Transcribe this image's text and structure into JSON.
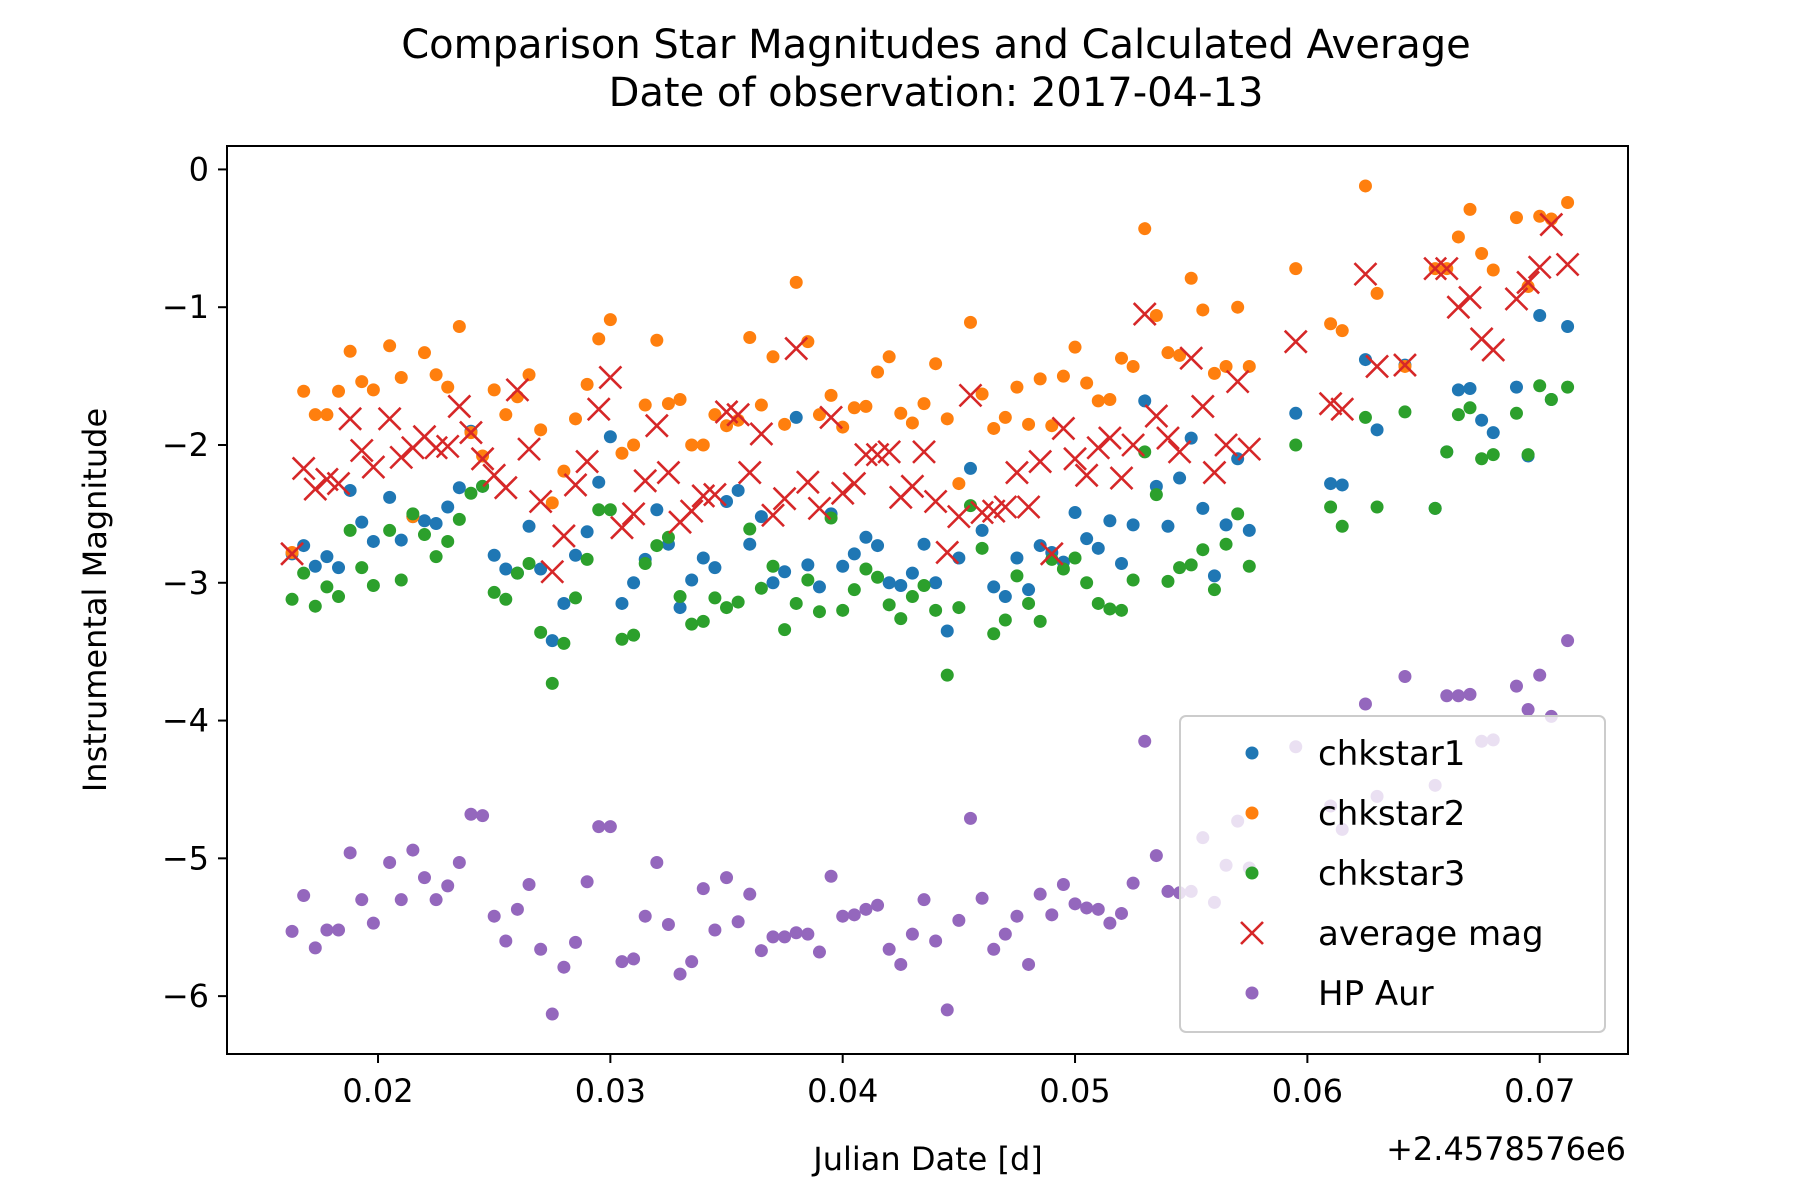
{
  "chart_data": {
    "type": "scatter",
    "title": "Comparison Star Magnitudes and Calculated Average",
    "subtitle": "Date of observation: 2017-04-13",
    "xlabel": "Julian Date [d]",
    "ylabel": "Instrumental Magnitude",
    "x_offset_label": "+2.4578576e6",
    "xlim": [
      0.0135,
      0.0738
    ],
    "ylim": [
      -6.42,
      0.17
    ],
    "x_ticks": [
      0.02,
      0.03,
      0.04,
      0.05,
      0.06,
      0.07
    ],
    "x_tick_labels": [
      "0.02",
      "0.03",
      "0.04",
      "0.05",
      "0.06",
      "0.07"
    ],
    "y_ticks": [
      0,
      -1,
      -2,
      -3,
      -4,
      -5,
      -6
    ],
    "y_tick_labels": [
      "0",
      "−1",
      "−2",
      "−3",
      "−4",
      "−5",
      "−6"
    ],
    "grid": false,
    "legend_position": "bottom-right",
    "x": [
      0.0163,
      0.0168,
      0.0173,
      0.0178,
      0.0183,
      0.0188,
      0.0193,
      0.0198,
      0.0205,
      0.021,
      0.0215,
      0.022,
      0.0225,
      0.023,
      0.0235,
      0.024,
      0.0245,
      0.025,
      0.0255,
      0.026,
      0.0265,
      0.027,
      0.0275,
      0.028,
      0.0285,
      0.029,
      0.0295,
      0.03,
      0.0305,
      0.031,
      0.0315,
      0.032,
      0.0325,
      0.033,
      0.0335,
      0.034,
      0.0345,
      0.035,
      0.0355,
      0.036,
      0.0365,
      0.037,
      0.0375,
      0.038,
      0.0385,
      0.039,
      0.0395,
      0.04,
      0.0405,
      0.041,
      0.0415,
      0.042,
      0.0425,
      0.043,
      0.0435,
      0.044,
      0.0445,
      0.045,
      0.0455,
      0.046,
      0.0465,
      0.047,
      0.0475,
      0.048,
      0.0485,
      0.049,
      0.0495,
      0.05,
      0.0505,
      0.051,
      0.0515,
      0.052,
      0.0525,
      0.053,
      0.0535,
      0.054,
      0.0545,
      0.055,
      0.0555,
      0.056,
      0.0565,
      0.057,
      0.0575,
      0.0595,
      0.061,
      0.0615,
      0.0625,
      0.063,
      0.0642,
      0.0655,
      0.066,
      0.0665,
      0.067,
      0.0675,
      0.068,
      0.069,
      0.0695,
      0.07,
      0.0705,
      0.0712
    ],
    "series": [
      {
        "name": "chkstar1",
        "color": "#1f77b4",
        "marker": "dot",
        "values": [
          -2.79,
          -2.73,
          -2.88,
          -2.81,
          -2.89,
          -2.33,
          -2.56,
          -2.7,
          -2.38,
          -2.69,
          -2.52,
          -2.55,
          -2.57,
          -2.45,
          -2.31,
          -1.9,
          -2.3,
          -2.8,
          -2.9,
          -2.93,
          -2.59,
          -2.9,
          -3.42,
          -3.15,
          -2.8,
          -2.63,
          -2.27,
          -1.94,
          -3.15,
          -3.0,
          -2.83,
          -2.47,
          -2.72,
          -3.18,
          -2.98,
          -2.82,
          -2.89,
          -2.41,
          -2.33,
          -2.72,
          -2.52,
          -3.0,
          -2.92,
          -1.8,
          -2.87,
          -3.03,
          -2.5,
          -2.88,
          -2.79,
          -2.67,
          -2.73,
          -3.0,
          -3.02,
          -2.93,
          -2.72,
          -3.0,
          -3.35,
          -2.82,
          -2.17,
          -2.62,
          -3.03,
          -3.1,
          -2.82,
          -3.05,
          -2.73,
          -2.78,
          -2.85,
          -2.49,
          -2.68,
          -2.75,
          -2.55,
          -2.86,
          -2.58,
          -1.68,
          -2.3,
          -2.59,
          -2.24,
          -1.95,
          -2.46,
          -2.95,
          -2.58,
          -2.1,
          -2.62,
          -1.77,
          -2.28,
          -2.29,
          -1.38,
          -1.89,
          -1.42,
          -2.46,
          -2.05,
          -1.6,
          -1.59,
          -1.82,
          -1.91,
          -1.58,
          -2.08,
          -1.06,
          -1.67,
          -1.14
        ]
      },
      {
        "name": "chkstar2",
        "color": "#ff7f0e",
        "marker": "dot",
        "values": [
          -2.78,
          -1.61,
          -1.78,
          -1.78,
          -1.61,
          -1.32,
          -1.54,
          -1.6,
          -1.28,
          -1.51,
          -2.52,
          -1.33,
          -1.49,
          -1.58,
          -1.14,
          -1.91,
          -2.08,
          -1.6,
          -1.78,
          -1.65,
          -1.49,
          -1.89,
          -2.42,
          -2.19,
          -1.81,
          -1.56,
          -1.23,
          -1.09,
          -2.06,
          -2.0,
          -1.71,
          -1.24,
          -1.7,
          -1.67,
          -2.0,
          -2.0,
          -1.78,
          -1.86,
          -1.82,
          -1.22,
          -1.71,
          -1.36,
          -1.85,
          -0.82,
          -1.25,
          -1.78,
          -1.64,
          -1.87,
          -1.73,
          -1.72,
          -1.47,
          -1.36,
          -1.77,
          -1.84,
          -1.7,
          -1.41,
          -1.81,
          -2.28,
          -1.11,
          -1.63,
          -1.88,
          -1.8,
          -1.58,
          -1.85,
          -1.52,
          -1.86,
          -1.5,
          -1.29,
          -1.55,
          -1.68,
          -1.67,
          -1.37,
          -1.43,
          -0.43,
          -1.06,
          -1.33,
          -1.35,
          -0.79,
          -1.02,
          -1.48,
          -1.43,
          -1.0,
          -1.43,
          -0.72,
          -1.12,
          -1.17,
          -0.12,
          -0.9,
          -1.43,
          -0.72,
          -0.72,
          -0.49,
          -0.29,
          -0.61,
          -0.73,
          -0.35,
          -0.85,
          -0.34,
          -0.36,
          -0.24
        ]
      },
      {
        "name": "chkstar3",
        "color": "#2ca02c",
        "marker": "dot",
        "values": [
          -3.12,
          -2.93,
          -3.17,
          -3.03,
          -3.1,
          -2.62,
          -2.89,
          -3.02,
          -2.62,
          -2.98,
          -2.5,
          -2.65,
          -2.81,
          -2.7,
          -2.54,
          -2.35,
          -2.3,
          -3.07,
          -3.12,
          -2.93,
          -2.86,
          -3.36,
          -3.73,
          -3.44,
          -3.11,
          -2.83,
          -2.47,
          -2.47,
          -3.41,
          -3.38,
          -2.86,
          -2.73,
          -2.67,
          -3.1,
          -3.3,
          -3.28,
          -3.11,
          -3.18,
          -3.14,
          -2.61,
          -3.04,
          -2.88,
          -3.34,
          -3.15,
          -2.98,
          -3.21,
          -2.53,
          -3.2,
          -3.05,
          -2.9,
          -2.96,
          -3.16,
          -3.26,
          -3.1,
          -3.02,
          -3.2,
          -3.67,
          -3.18,
          -2.44,
          -2.75,
          -3.37,
          -3.27,
          -2.95,
          -3.15,
          -3.28,
          -2.83,
          -2.9,
          -2.82,
          -3.0,
          -3.15,
          -3.19,
          -3.2,
          -2.98,
          -2.05,
          -2.36,
          -2.99,
          -2.89,
          -2.87,
          -2.76,
          -3.05,
          -2.72,
          -2.5,
          -2.88,
          -2.0,
          -2.45,
          -2.59,
          -1.8,
          -2.45,
          -1.76,
          -2.46,
          -2.05,
          -1.78,
          -1.73,
          -2.1,
          -2.07,
          -1.77,
          -2.07,
          -1.57,
          -1.67,
          -1.58
        ]
      },
      {
        "name": "average mag",
        "color": "#d62728",
        "marker": "x",
        "values": [
          -2.79,
          -2.17,
          -2.32,
          -2.25,
          -2.28,
          -1.81,
          -2.04,
          -2.16,
          -1.81,
          -2.09,
          -2.02,
          -1.94,
          -2.02,
          -2.01,
          -1.72,
          -1.91,
          -2.1,
          -2.22,
          -2.31,
          -1.6,
          -2.03,
          -2.41,
          -2.92,
          -2.66,
          -2.29,
          -2.12,
          -1.74,
          -1.51,
          -2.6,
          -2.5,
          -2.26,
          -1.86,
          -2.2,
          -2.56,
          -2.48,
          -2.37,
          -2.36,
          -1.76,
          -1.78,
          -2.2,
          -1.92,
          -2.51,
          -2.39,
          -1.3,
          -2.27,
          -2.46,
          -1.8,
          -2.35,
          -2.28,
          -2.07,
          -2.07,
          -2.05,
          -2.38,
          -2.3,
          -2.05,
          -2.41,
          -2.78,
          -2.52,
          -1.64,
          -2.49,
          -2.48,
          -2.45,
          -2.2,
          -2.45,
          -2.12,
          -2.79,
          -1.88,
          -2.1,
          -2.22,
          -2.02,
          -1.95,
          -2.24,
          -2.0,
          -1.05,
          -1.79,
          -1.95,
          -2.05,
          -1.37,
          -1.72,
          -2.2,
          -2.0,
          -1.54,
          -2.03,
          -1.25,
          -1.7,
          -1.74,
          -0.76,
          -1.43,
          -1.42,
          -0.72,
          -0.72,
          -1.0,
          -0.93,
          -1.23,
          -1.31,
          -0.94,
          -0.82,
          -0.71,
          -0.4,
          -0.69
        ]
      },
      {
        "name": "HP Aur",
        "color": "#9467bd",
        "marker": "dot",
        "values": [
          -5.53,
          -5.27,
          -5.65,
          -5.52,
          -5.52,
          -4.96,
          -5.3,
          -5.47,
          -5.03,
          -5.3,
          -4.94,
          -5.14,
          -5.3,
          -5.2,
          -5.03,
          -4.68,
          -4.69,
          -5.42,
          -5.6,
          -5.37,
          -5.19,
          -5.66,
          -6.13,
          -5.79,
          -5.61,
          -5.17,
          -4.77,
          -4.77,
          -5.75,
          -5.73,
          -5.42,
          -5.03,
          -5.48,
          -5.84,
          -5.75,
          -5.22,
          -5.52,
          -5.14,
          -5.46,
          -5.26,
          -5.67,
          -5.57,
          -5.57,
          -5.54,
          -5.55,
          -5.68,
          -5.13,
          -5.42,
          -5.41,
          -5.37,
          -5.34,
          -5.66,
          -5.77,
          -5.55,
          -5.3,
          -5.6,
          -6.1,
          -5.45,
          -4.71,
          -5.29,
          -5.66,
          -5.55,
          -5.42,
          -5.77,
          -5.26,
          -5.41,
          -5.19,
          -5.33,
          -5.36,
          -5.37,
          -5.47,
          -5.4,
          -5.18,
          -4.15,
          -4.98,
          -5.24,
          -5.25,
          -5.24,
          -4.85,
          -5.32,
          -5.05,
          -4.73,
          -5.07,
          -4.19,
          -4.62,
          -4.79,
          -3.88,
          -4.55,
          -3.68,
          -4.47,
          -3.82,
          -3.82,
          -3.81,
          -4.15,
          -4.14,
          -3.75,
          -3.92,
          -3.67,
          -3.97,
          -3.42
        ]
      }
    ]
  }
}
